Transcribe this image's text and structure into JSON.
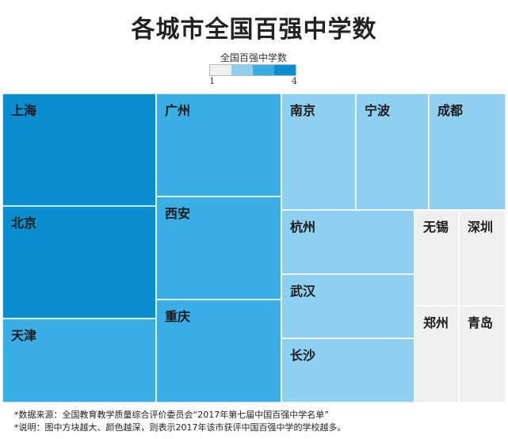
{
  "chart_data": {
    "type": "treemap",
    "title": "各城市全国百强中学数",
    "color_legend": {
      "title": "全国百强中学数",
      "min_label": "1",
      "max_label": "4"
    },
    "colors": {
      "1": "#efefef",
      "2": "#8fd0f0",
      "3": "#3aaee4",
      "4": "#0a8ed0"
    },
    "cells": [
      {
        "name": "上海",
        "value": 4
      },
      {
        "name": "北京",
        "value": 4
      },
      {
        "name": "天津",
        "value": 3
      },
      {
        "name": "广州",
        "value": 3
      },
      {
        "name": "西安",
        "value": 3
      },
      {
        "name": "重庆",
        "value": 3
      },
      {
        "name": "南京",
        "value": 2
      },
      {
        "name": "宁波",
        "value": 2
      },
      {
        "name": "成都",
        "value": 2
      },
      {
        "name": "杭州",
        "value": 2
      },
      {
        "name": "武汉",
        "value": 2
      },
      {
        "name": "长沙",
        "value": 2
      },
      {
        "name": "无锡",
        "value": 1
      },
      {
        "name": "深圳",
        "value": 1
      },
      {
        "name": "郑州",
        "value": 1
      },
      {
        "name": "青岛",
        "value": 1
      }
    ]
  },
  "footnotes": {
    "source": "*数据来源：全国教育教学质量综合评价委员会“2017年第七届中国百强中学名单”",
    "note": "*说明：图中方块越大、颜色越深，则表示2017年该市获评中国百强中学的学校越多。"
  }
}
